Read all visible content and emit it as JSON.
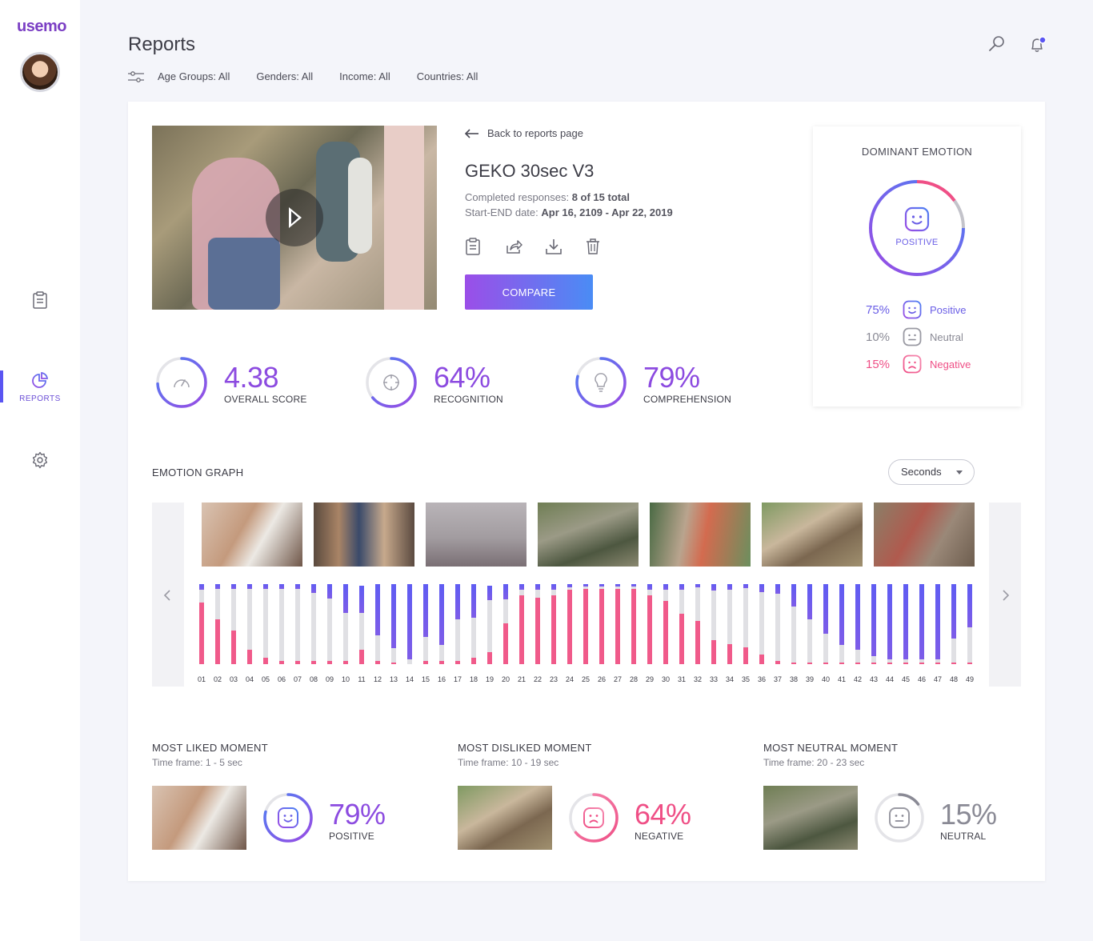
{
  "app": {
    "logo": "usemo"
  },
  "sidebar": {
    "reports_label": "REPORTS"
  },
  "header": {
    "title": "Reports",
    "filters": [
      "Age Groups: All",
      "Genders: All",
      "Income: All",
      "Countries: All"
    ]
  },
  "report": {
    "back_label": "Back to reports page",
    "title": "GEKO 30sec V3",
    "responses_label": "Completed responses:",
    "responses_value": "8 of 15 total",
    "dates_label": "Start-END date:",
    "dates_value": "Apr 16, 2109 - Apr 22, 2019",
    "compare_label": "COMPARE"
  },
  "dominant": {
    "title": "DOMINANT EMOTION",
    "emotion": "POSITIVE",
    "legend": [
      {
        "pct": "75%",
        "label": "Positive",
        "color": "#6a5ee6",
        "value": 75
      },
      {
        "pct": "10%",
        "label": "Neutral",
        "color": "#8a8a95",
        "value": 10
      },
      {
        "pct": "15%",
        "label": "Negative",
        "color": "#ef4f86",
        "value": 15
      }
    ]
  },
  "scores": [
    {
      "value": "4.38",
      "label": "OVERALL SCORE",
      "icon": "gauge-icon",
      "fill": 0.74
    },
    {
      "value": "64%",
      "label": "RECOGNITION",
      "icon": "crosshair-icon",
      "fill": 0.64
    },
    {
      "value": "79%",
      "label": "COMPREHENSION",
      "icon": "lightbulb-icon",
      "fill": 0.79
    }
  ],
  "graph": {
    "title": "EMOTION GRAPH",
    "unit_select": "Seconds"
  },
  "chart_data": {
    "type": "bar",
    "stacked": true,
    "categories": [
      "01",
      "02",
      "03",
      "04",
      "05",
      "06",
      "07",
      "08",
      "09",
      "10",
      "11",
      "12",
      "13",
      "14",
      "15",
      "16",
      "17",
      "18",
      "19",
      "20",
      "21",
      "22",
      "23",
      "24",
      "25",
      "26",
      "27",
      "28",
      "29",
      "30",
      "31",
      "32",
      "33",
      "34",
      "35",
      "36",
      "37",
      "38",
      "39",
      "40",
      "41",
      "42",
      "43",
      "44",
      "45",
      "46",
      "47",
      "48",
      "49"
    ],
    "series": [
      {
        "color": "#f05a8a",
        "values": [
          77,
          56,
          42,
          18,
          8,
          4,
          4,
          4,
          4,
          4,
          18,
          4,
          2,
          0,
          4,
          4,
          4,
          8,
          15,
          51,
          86,
          83,
          86,
          93,
          94,
          94,
          94,
          94,
          86,
          79,
          63,
          54,
          30,
          25,
          21,
          12,
          4,
          2,
          2,
          2,
          2,
          2,
          2,
          2,
          2,
          2,
          2,
          2,
          2
        ]
      },
      {
        "color": "#e0e0e4",
        "values": [
          16,
          38,
          52,
          76,
          86,
          90,
          90,
          85,
          78,
          60,
          46,
          32,
          18,
          6,
          30,
          20,
          52,
          50,
          65,
          30,
          7,
          10,
          7,
          3,
          3,
          3,
          3,
          3,
          7,
          14,
          30,
          42,
          62,
          68,
          74,
          78,
          84,
          70,
          54,
          36,
          22,
          16,
          8,
          4,
          4,
          4,
          4,
          30,
          44
        ]
      },
      {
        "color": "#5a5cf0",
        "values": [
          7,
          6,
          6,
          6,
          6,
          6,
          6,
          11,
          18,
          36,
          34,
          64,
          80,
          94,
          66,
          76,
          44,
          42,
          18,
          19,
          7,
          7,
          7,
          4,
          3,
          3,
          3,
          3,
          7,
          7,
          7,
          4,
          8,
          7,
          5,
          10,
          12,
          28,
          44,
          62,
          76,
          82,
          90,
          94,
          94,
          94,
          94,
          68,
          54
        ]
      }
    ],
    "ylim": [
      0,
      100
    ]
  },
  "moments": [
    {
      "title": "MOST LIKED MOMENT",
      "frame": "Time frame: 1 - 5 sec",
      "value": "79%",
      "label": "POSITIVE",
      "color": "#8c4be0",
      "fill": 0.79,
      "face": "happy-face-icon"
    },
    {
      "title": "MOST DISLIKED MOMENT",
      "frame": "Time frame: 10 - 19 sec",
      "value": "64%",
      "label": "NEGATIVE",
      "color": "#ef4f86",
      "fill": 0.64,
      "face": "sad-face-icon"
    },
    {
      "title": "MOST NEUTRAL MOMENT",
      "frame": "Time frame: 20 - 23 sec",
      "value": "15%",
      "label": "NEUTRAL",
      "color": "#8a8a95",
      "fill": 0.15,
      "face": "neutral-face-icon"
    }
  ]
}
